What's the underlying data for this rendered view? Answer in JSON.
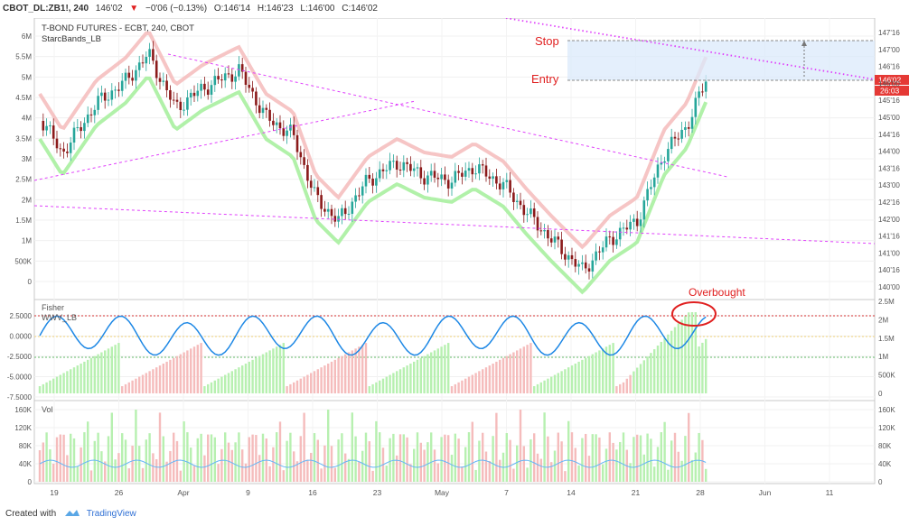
{
  "header": {
    "symbol": "CBOT_DL:ZB1!, 240",
    "last": "146'02",
    "change_arrow": "down",
    "change": "−0'06 (−0.13%)",
    "open": "O:146'14",
    "high": "H:146'23",
    "low": "L:146'00",
    "close": "C:146'02"
  },
  "main_pane": {
    "title": "T-BOND FUTURES - ECBT, 240, CBOT",
    "indicator": "StarcBands_LB",
    "left_axis": [
      "6M",
      "5.5M",
      "5M",
      "4.5M",
      "4M",
      "3.5M",
      "3M",
      "2.5M",
      "2M",
      "1.5M",
      "1M",
      "500K",
      "0"
    ],
    "right_axis": [
      "147'16",
      "147'00",
      "146'16",
      "146'00",
      "145'16",
      "145'00",
      "144'16",
      "144'00",
      "143'16",
      "143'00",
      "142'16",
      "142'00",
      "141'16",
      "141'00",
      "140'16",
      "140'00"
    ],
    "price_label": "146'02",
    "countdown_label": "26:03",
    "annotations": {
      "stop": "Stop",
      "entry": "Entry"
    }
  },
  "fisher_pane": {
    "title": "Fisher",
    "indicator": "WWV_LB",
    "left_axis": [
      "2.5000",
      "0.0000",
      "-2.5000",
      "-5.0000",
      "-7.5000"
    ],
    "right_axis": [
      "2.5M",
      "2M",
      "1.5M",
      "1M",
      "500K",
      "0"
    ],
    "annotation": "Overbought"
  },
  "vol_pane": {
    "title": "Vol",
    "left_axis": [
      "160K",
      "120K",
      "80K",
      "40K",
      "0"
    ],
    "right_axis": [
      "160K",
      "120K",
      "80K",
      "40K",
      "0"
    ]
  },
  "time_axis": [
    "19",
    "26",
    "Apr",
    "9",
    "16",
    "23",
    "May",
    "7",
    "14",
    "21",
    "28",
    "Jun",
    "11"
  ],
  "footer": {
    "created": "Created with",
    "brand": "TradingView"
  },
  "colors": {
    "bull": "#26a69a",
    "bear": "#8b1a1a",
    "upper_band": "#f4b6b6",
    "lower_band": "#a9f0a0",
    "fisher": "#1e88e5",
    "trendline": "#e040fb",
    "annotation": "#e02020"
  }
}
